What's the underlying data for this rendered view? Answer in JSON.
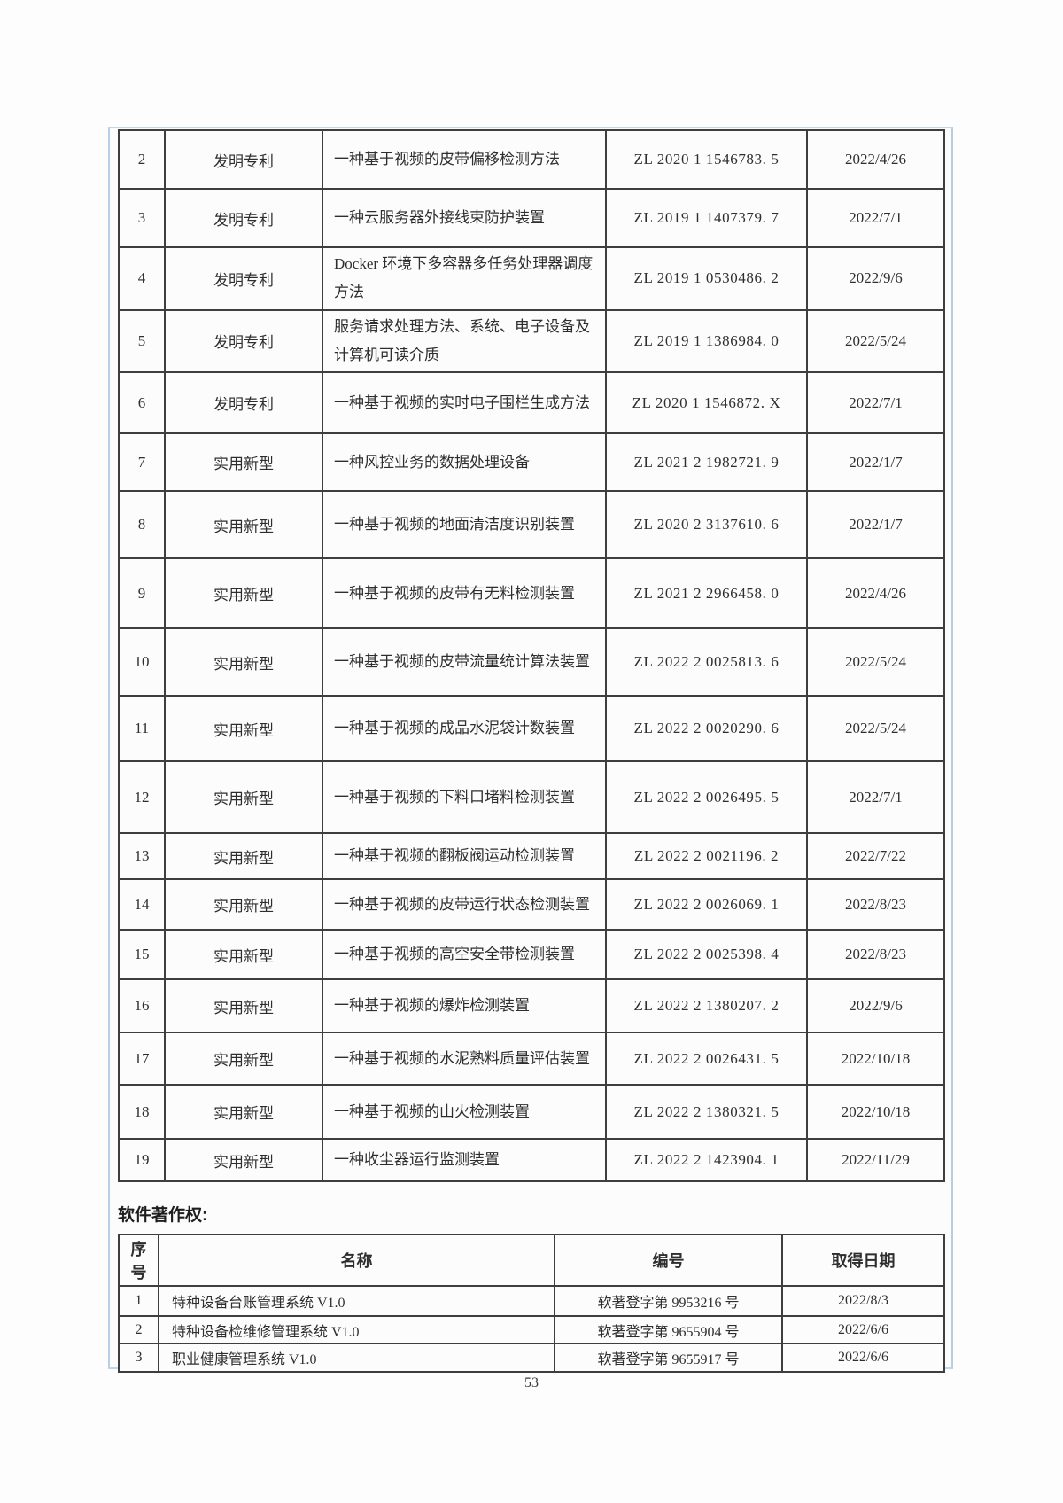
{
  "page": {
    "number": "53"
  },
  "patent_table": {
    "rows": [
      {
        "no": "2",
        "type": "发明专利",
        "title": "一种基于视频的皮带偏移检测方法",
        "code": "ZL 2020 1 1546783. 5",
        "date": "2022/4/26"
      },
      {
        "no": "3",
        "type": "发明专利",
        "title": "一种云服务器外接线束防护装置",
        "code": "ZL 2019 1 1407379. 7",
        "date": "2022/7/1"
      },
      {
        "no": "4",
        "type": "发明专利",
        "title": "Docker 环境下多容器多任务处理器调度方法",
        "code": "ZL 2019 1 0530486. 2",
        "date": "2022/9/6"
      },
      {
        "no": "5",
        "type": "发明专利",
        "title": "服务请求处理方法、系统、电子设备及计算机可读介质",
        "code": "ZL 2019 1 1386984. 0",
        "date": "2022/5/24"
      },
      {
        "no": "6",
        "type": "发明专利",
        "title": "一种基于视频的实时电子围栏生成方法",
        "code": "ZL 2020 1 1546872. X",
        "date": "2022/7/1"
      },
      {
        "no": "7",
        "type": "实用新型",
        "title": "一种风控业务的数据处理设备",
        "code": "ZL 2021 2 1982721. 9",
        "date": "2022/1/7"
      },
      {
        "no": "8",
        "type": "实用新型",
        "title": "一种基于视频的地面清洁度识别装置",
        "code": "ZL 2020 2 3137610. 6",
        "date": "2022/1/7"
      },
      {
        "no": "9",
        "type": "实用新型",
        "title": "一种基于视频的皮带有无料检测装置",
        "code": "ZL 2021 2 2966458. 0",
        "date": "2022/4/26"
      },
      {
        "no": "10",
        "type": "实用新型",
        "title": "一种基于视频的皮带流量统计算法装置",
        "code": "ZL 2022 2 0025813. 6",
        "date": "2022/5/24"
      },
      {
        "no": "11",
        "type": "实用新型",
        "title": "一种基于视频的成品水泥袋计数装置",
        "code": "ZL 2022 2 0020290. 6",
        "date": "2022/5/24"
      },
      {
        "no": "12",
        "type": "实用新型",
        "title": "一种基于视频的下料口堵料检测装置",
        "code": "ZL 2022 2 0026495. 5",
        "date": "2022/7/1"
      },
      {
        "no": "13",
        "type": "实用新型",
        "title": "一种基于视频的翻板阀运动检测装置",
        "code": "ZL 2022 2 0021196. 2",
        "date": "2022/7/22"
      },
      {
        "no": "14",
        "type": "实用新型",
        "title": "一种基于视频的皮带运行状态检测装置",
        "code": "ZL 2022 2 0026069. 1",
        "date": "2022/8/23"
      },
      {
        "no": "15",
        "type": "实用新型",
        "title": "一种基于视频的高空安全带检测装置",
        "code": "ZL 2022 2 0025398. 4",
        "date": "2022/8/23"
      },
      {
        "no": "16",
        "type": "实用新型",
        "title": "一种基于视频的爆炸检测装置",
        "code": "ZL 2022 2 1380207. 2",
        "date": "2022/9/6"
      },
      {
        "no": "17",
        "type": "实用新型",
        "title": "一种基于视频的水泥熟料质量评估装置",
        "code": "ZL 2022 2 0026431. 5",
        "date": "2022/10/18"
      },
      {
        "no": "18",
        "type": "实用新型",
        "title": "一种基于视频的山火检测装置",
        "code": "ZL 2022 2 1380321. 5",
        "date": "2022/10/18"
      },
      {
        "no": "19",
        "type": "实用新型",
        "title": "一种收尘器运行监测装置",
        "code": "ZL 2022 2 1423904. 1",
        "date": "2022/11/29"
      }
    ]
  },
  "software_section": {
    "heading": "软件著作权:",
    "headers": [
      "序号",
      "名称",
      "编号",
      "取得日期"
    ],
    "rows": [
      {
        "no": "1",
        "name": "特种设备台账管理系统 V1.0",
        "code": "软著登字第 9953216 号",
        "date": "2022/8/3"
      },
      {
        "no": "2",
        "name": "特种设备检维修管理系统 V1.0",
        "code": "软著登字第 9655904 号",
        "date": "2022/6/6"
      },
      {
        "no": "3",
        "name": "职业健康管理系统 V1.0",
        "code": "软著登字第 9655917 号",
        "date": "2022/6/6"
      }
    ]
  }
}
